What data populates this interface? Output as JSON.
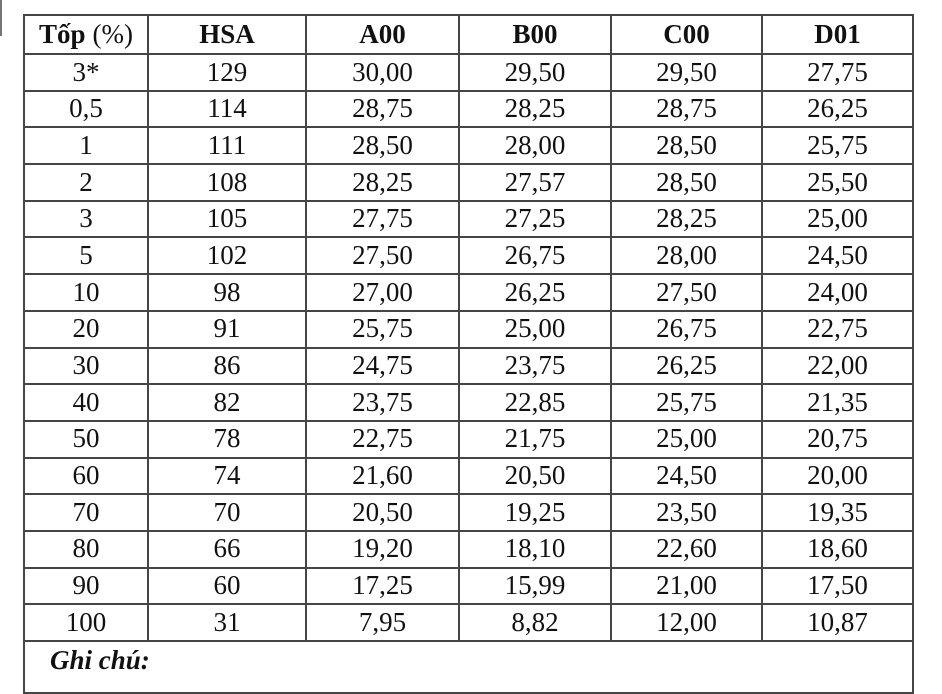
{
  "page": {
    "background_color": "#ffffff",
    "border_color": "#454545",
    "text_color": "#111111"
  },
  "table": {
    "first_header": {
      "bold": "Tốp",
      "normal": "(%)"
    },
    "headers": [
      "HSA",
      "A00",
      "B00",
      "C00",
      "D01"
    ],
    "rows": [
      [
        "3*",
        "129",
        "30,00",
        "29,50",
        "29,50",
        "27,75"
      ],
      [
        "0,5",
        "114",
        "28,75",
        "28,25",
        "28,75",
        "26,25"
      ],
      [
        "1",
        "111",
        "28,50",
        "28,00",
        "28,50",
        "25,75"
      ],
      [
        "2",
        "108",
        "28,25",
        "27,57",
        "28,50",
        "25,50"
      ],
      [
        "3",
        "105",
        "27,75",
        "27,25",
        "28,25",
        "25,00"
      ],
      [
        "5",
        "102",
        "27,50",
        "26,75",
        "28,00",
        "24,50"
      ],
      [
        "10",
        "98",
        "27,00",
        "26,25",
        "27,50",
        "24,00"
      ],
      [
        "20",
        "91",
        "25,75",
        "25,00",
        "26,75",
        "22,75"
      ],
      [
        "30",
        "86",
        "24,75",
        "23,75",
        "26,25",
        "22,00"
      ],
      [
        "40",
        "82",
        "23,75",
        "22,85",
        "25,75",
        "21,35"
      ],
      [
        "50",
        "78",
        "22,75",
        "21,75",
        "25,00",
        "20,75"
      ],
      [
        "60",
        "74",
        "21,60",
        "20,50",
        "24,50",
        "20,00"
      ],
      [
        "70",
        "70",
        "20,50",
        "19,25",
        "23,50",
        "19,35"
      ],
      [
        "80",
        "66",
        "19,20",
        "18,10",
        "22,60",
        "18,60"
      ],
      [
        "90",
        "60",
        "17,25",
        "15,99",
        "21,00",
        "17,50"
      ],
      [
        "100",
        "31",
        "7,95",
        "8,82",
        "12,00",
        "10,87"
      ]
    ],
    "note_label": "Ghi chú:"
  }
}
